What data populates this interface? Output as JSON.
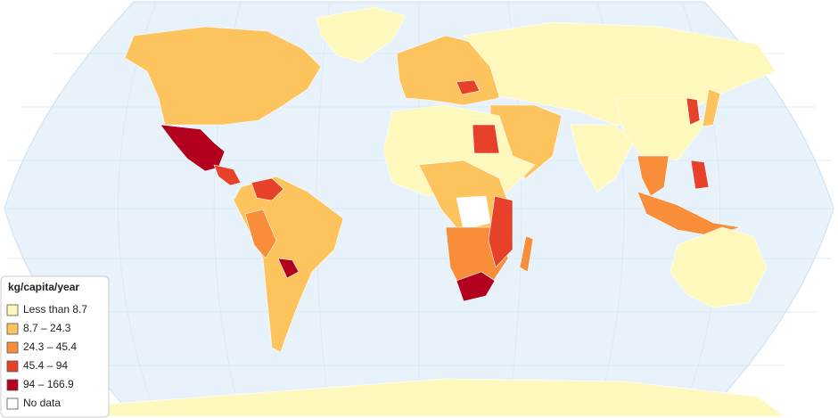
{
  "legend": {
    "title": "kg/capita/year",
    "items": [
      {
        "label": "Less than 8.7",
        "color": "#fff8bd"
      },
      {
        "label": "8.7 – 24.3",
        "color": "#fdc45e"
      },
      {
        "label": "24.3 – 45.4",
        "color": "#f88d3a"
      },
      {
        "label": "45.4 – 94",
        "color": "#e8412a"
      },
      {
        "label": "94 – 166.9",
        "color": "#b3001e"
      },
      {
        "label": "No data",
        "color": "#ffffff"
      }
    ]
  }
}
